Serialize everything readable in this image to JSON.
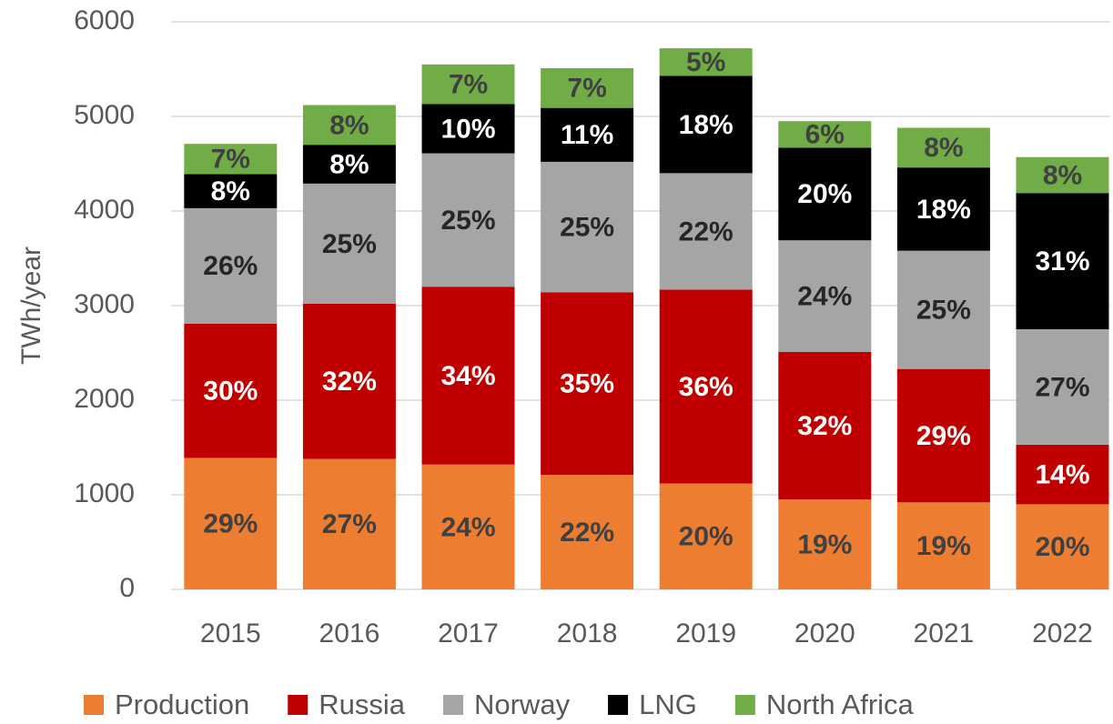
{
  "chart_data": {
    "type": "stacked_bar",
    "y_label": "TWh/year",
    "categories": [
      "2015",
      "2016",
      "2017",
      "2018",
      "2019",
      "2020",
      "2021",
      "2022"
    ],
    "series": [
      {
        "name": "Production",
        "color": "#ED7D31",
        "label_color": "#404040",
        "values": [
          1390,
          1380,
          1320,
          1210,
          1120,
          950,
          920,
          900
        ],
        "labels": [
          "29%",
          "27%",
          "24%",
          "22%",
          "20%",
          "19%",
          "19%",
          "20%"
        ]
      },
      {
        "name": "Russia",
        "color": "#C00000",
        "label_color": "#FFFFFF",
        "values": [
          1420,
          1640,
          1880,
          1930,
          2050,
          1560,
          1410,
          630
        ],
        "labels": [
          "30%",
          "32%",
          "34%",
          "35%",
          "36%",
          "32%",
          "29%",
          "14%"
        ]
      },
      {
        "name": "Norway",
        "color": "#A5A5A5",
        "label_color": "#262626",
        "values": [
          1220,
          1270,
          1410,
          1380,
          1230,
          1180,
          1250,
          1220
        ],
        "labels": [
          "26%",
          "25%",
          "25%",
          "25%",
          "22%",
          "24%",
          "25%",
          "27%"
        ]
      },
      {
        "name": "LNG",
        "color": "#000000",
        "label_color": "#FFFFFF",
        "values": [
          360,
          410,
          520,
          570,
          1030,
          980,
          880,
          1440
        ],
        "labels": [
          "8%",
          "8%",
          "10%",
          "11%",
          "18%",
          "20%",
          "18%",
          "31%"
        ]
      },
      {
        "name": "North Africa",
        "color": "#70AD47",
        "label_color": "#404040",
        "values": [
          320,
          420,
          420,
          420,
          290,
          280,
          420,
          380
        ],
        "labels": [
          "7%",
          "8%",
          "7%",
          "7%",
          "5%",
          "6%",
          "8%",
          "8%"
        ]
      }
    ],
    "ylim": [
      0,
      6000
    ],
    "yticks": [
      0,
      1000,
      2000,
      3000,
      4000,
      5000,
      6000
    ],
    "grid": true,
    "legend": "bottom"
  }
}
